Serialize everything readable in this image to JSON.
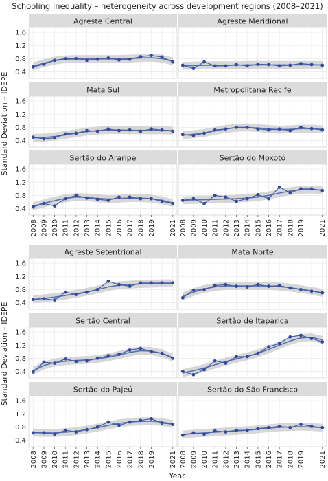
{
  "title": "Schooling Inequality – heterogeneity across development regions (2008–2021)",
  "ylabel": "Standard Deviation – IDEPE",
  "xlabel": "Year",
  "colors": {
    "line": "#3f5fa8",
    "point": "#33489a",
    "band": "#c9c9c9",
    "panel_bg": "#ffffff",
    "strip_bg": "#dcdcdc",
    "grid": "#ececec"
  },
  "chart_data": {
    "type": "line",
    "x": [
      2008,
      2009,
      2010,
      2011,
      2012,
      2013,
      2014,
      2015,
      2016,
      2017,
      2018,
      2019,
      2021
    ],
    "y_ticks": [
      0.4,
      0.8,
      1.2,
      1.6
    ],
    "ylim": [
      0.2,
      1.75
    ],
    "xlim": [
      2007.6,
      2021.4
    ],
    "grid": true,
    "x_years": [
      2008,
      2009,
      2010,
      2011,
      2012,
      2013,
      2014,
      2015,
      2016,
      2017,
      2018,
      2019,
      2020,
      2021
    ],
    "group_top": [
      {
        "name": "Agreste Central",
        "values": [
          0.55,
          0.63,
          0.75,
          0.8,
          0.8,
          0.75,
          0.78,
          0.82,
          0.76,
          0.78,
          0.86,
          0.9,
          0.85,
          0.7
        ],
        "smooth": [
          0.57,
          0.66,
          0.74,
          0.78,
          0.79,
          0.79,
          0.79,
          0.79,
          0.79,
          0.8,
          0.82,
          0.83,
          0.8,
          0.72
        ]
      },
      {
        "name": "Agreste Meridional",
        "values": [
          0.6,
          0.5,
          0.7,
          0.58,
          0.58,
          0.62,
          0.58,
          0.63,
          0.62,
          0.58,
          0.6,
          0.65,
          0.62,
          0.6
        ],
        "smooth": [
          0.58,
          0.59,
          0.6,
          0.6,
          0.6,
          0.6,
          0.61,
          0.61,
          0.61,
          0.61,
          0.61,
          0.61,
          0.61,
          0.61
        ]
      },
      {
        "name": "Mata Sul",
        "values": [
          0.5,
          0.45,
          0.48,
          0.6,
          0.62,
          0.7,
          0.68,
          0.75,
          0.7,
          0.72,
          0.68,
          0.75,
          0.72,
          0.68
        ],
        "smooth": [
          0.48,
          0.49,
          0.52,
          0.57,
          0.62,
          0.67,
          0.7,
          0.72,
          0.72,
          0.71,
          0.71,
          0.71,
          0.71,
          0.7
        ]
      },
      {
        "name": "Metropolitana Recife",
        "values": [
          0.58,
          0.55,
          0.62,
          0.72,
          0.75,
          0.8,
          0.8,
          0.75,
          0.72,
          0.75,
          0.7,
          0.8,
          0.76,
          0.72
        ],
        "smooth": [
          0.56,
          0.59,
          0.63,
          0.69,
          0.75,
          0.79,
          0.8,
          0.78,
          0.75,
          0.73,
          0.74,
          0.76,
          0.76,
          0.74
        ]
      },
      {
        "name": "Sertão do Araripe",
        "values": [
          0.45,
          0.55,
          0.48,
          0.7,
          0.8,
          0.72,
          0.68,
          0.65,
          0.75,
          0.75,
          0.7,
          0.7,
          0.62,
          0.55
        ],
        "smooth": [
          0.47,
          0.56,
          0.64,
          0.71,
          0.75,
          0.74,
          0.71,
          0.69,
          0.7,
          0.72,
          0.72,
          0.7,
          0.65,
          0.57
        ]
      },
      {
        "name": "Sertão do Moxotó",
        "values": [
          0.65,
          0.7,
          0.55,
          0.8,
          0.75,
          0.62,
          0.7,
          0.82,
          0.7,
          1.05,
          0.88,
          1.0,
          1.0,
          0.95
        ],
        "smooth": [
          0.65,
          0.66,
          0.67,
          0.68,
          0.69,
          0.7,
          0.72,
          0.75,
          0.8,
          0.87,
          0.93,
          0.97,
          0.98,
          0.96
        ]
      }
    ],
    "group_bottom": [
      {
        "name": "Agreste Setentrional",
        "values": [
          0.5,
          0.52,
          0.48,
          0.72,
          0.65,
          0.72,
          0.8,
          1.05,
          0.95,
          0.9,
          1.0,
          1.0,
          1.0,
          1.0
        ],
        "smooth": [
          0.5,
          0.53,
          0.57,
          0.62,
          0.67,
          0.73,
          0.8,
          0.88,
          0.93,
          0.95,
          0.97,
          0.98,
          0.99,
          0.99
        ]
      },
      {
        "name": "Mata Norte",
        "values": [
          0.55,
          0.78,
          0.8,
          0.92,
          0.95,
          0.9,
          0.88,
          0.95,
          0.9,
          0.92,
          0.85,
          0.8,
          0.75,
          0.7
        ],
        "smooth": [
          0.6,
          0.72,
          0.82,
          0.88,
          0.91,
          0.91,
          0.91,
          0.91,
          0.91,
          0.89,
          0.86,
          0.81,
          0.76,
          0.7
        ]
      },
      {
        "name": "Sertão Central",
        "values": [
          0.38,
          0.68,
          0.65,
          0.78,
          0.7,
          0.72,
          0.8,
          0.88,
          0.92,
          1.05,
          1.1,
          1.0,
          0.95,
          0.8
        ],
        "smooth": [
          0.42,
          0.58,
          0.67,
          0.71,
          0.73,
          0.75,
          0.78,
          0.83,
          0.9,
          0.98,
          1.03,
          1.02,
          0.95,
          0.82
        ]
      },
      {
        "name": "Sertão de Itaparica",
        "values": [
          0.4,
          0.3,
          0.45,
          0.72,
          0.65,
          0.85,
          0.85,
          0.95,
          1.15,
          1.25,
          1.45,
          1.5,
          1.4,
          1.3
        ],
        "smooth": [
          0.35,
          0.42,
          0.5,
          0.6,
          0.7,
          0.78,
          0.86,
          0.95,
          1.07,
          1.2,
          1.33,
          1.42,
          1.44,
          1.36
        ]
      },
      {
        "name": "Sertão do Pajeú",
        "values": [
          0.62,
          0.62,
          0.58,
          0.7,
          0.65,
          0.72,
          0.8,
          0.95,
          0.85,
          0.95,
          1.0,
          1.05,
          0.92,
          0.88
        ],
        "smooth": [
          0.63,
          0.62,
          0.62,
          0.64,
          0.67,
          0.72,
          0.78,
          0.85,
          0.91,
          0.95,
          0.97,
          0.98,
          0.95,
          0.89
        ]
      },
      {
        "name": "Sertão do São Francisco",
        "values": [
          0.55,
          0.62,
          0.58,
          0.68,
          0.65,
          0.7,
          0.7,
          0.75,
          0.78,
          0.82,
          0.78,
          0.88,
          0.82,
          0.78
        ],
        "smooth": [
          0.57,
          0.6,
          0.62,
          0.64,
          0.66,
          0.68,
          0.7,
          0.73,
          0.76,
          0.79,
          0.8,
          0.81,
          0.8,
          0.78
        ]
      }
    ]
  }
}
